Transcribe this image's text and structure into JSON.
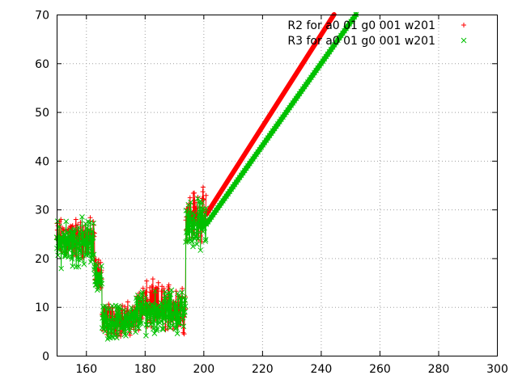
{
  "chart_data": {
    "type": "scatter",
    "title": "",
    "xlabel": "",
    "ylabel": "",
    "xlim": [
      150,
      300
    ],
    "ylim": [
      0,
      70
    ],
    "x_ticks": [
      "160",
      "180",
      "200",
      "220",
      "240",
      "260",
      "280",
      "300"
    ],
    "y_ticks": [
      "0",
      "10",
      "20",
      "30",
      "40",
      "50",
      "60",
      "70"
    ],
    "grid": true,
    "legend_position": "top-right",
    "series": [
      {
        "name": "R2 for a0 01 g0 001 w201",
        "marker": "+",
        "color": "#ff0000",
        "noisy_segments": [
          {
            "x_start": 150,
            "x_end": 163,
            "center": 24,
            "spread": 5
          },
          {
            "x_start": 163,
            "x_end": 165.5,
            "center": 17,
            "spread": 4
          },
          {
            "x_start": 165.5,
            "x_end": 177,
            "center": 7.5,
            "spread": 4
          },
          {
            "x_start": 177,
            "x_end": 194,
            "center": 10,
            "spread": 6
          },
          {
            "x_start": 194,
            "x_end": 201,
            "center": 29,
            "spread": 6
          }
        ],
        "trend": {
          "x_start": 201,
          "y_start": 29,
          "x_end": 244.5,
          "y_end": 70
        }
      },
      {
        "name": "R3 for a0 01 g0 001 w201",
        "marker": "x",
        "color": "#00c000",
        "noisy_segments": [
          {
            "x_start": 150,
            "x_end": 163,
            "center": 23,
            "spread": 6
          },
          {
            "x_start": 163,
            "x_end": 165.5,
            "center": 16,
            "spread": 4
          },
          {
            "x_start": 165.5,
            "x_end": 177,
            "center": 7,
            "spread": 4
          },
          {
            "x_start": 177,
            "x_end": 194,
            "center": 9,
            "spread": 5
          },
          {
            "x_start": 194,
            "x_end": 201,
            "center": 27,
            "spread": 6
          }
        ],
        "trend": {
          "x_start": 201,
          "y_start": 27,
          "x_end": 252,
          "y_end": 70
        }
      }
    ]
  }
}
